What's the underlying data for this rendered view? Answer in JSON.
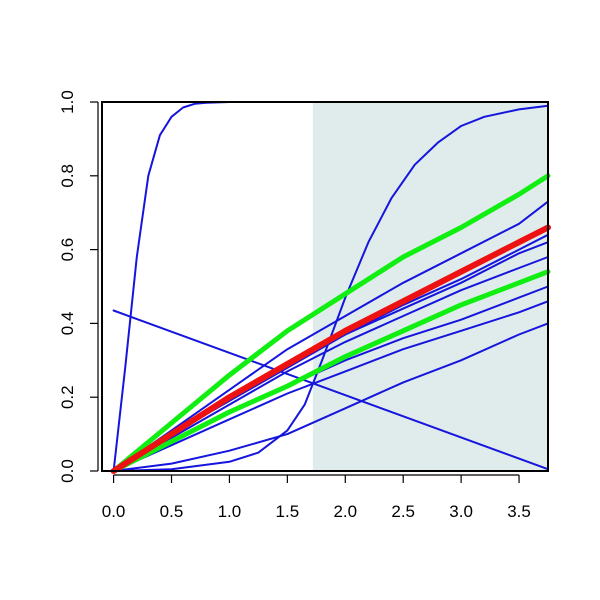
{
  "chart_data": {
    "type": "line",
    "title": "",
    "xlabel": "",
    "ylabel": "",
    "xlim": [
      -0.1,
      3.75
    ],
    "ylim": [
      0,
      1
    ],
    "grid": false,
    "x_ticks": [
      0,
      0.5,
      1,
      1.5,
      2,
      2.5,
      3,
      3.5
    ],
    "x_tick_labels": [
      "0.0",
      "0.5",
      "1.0",
      "1.5",
      "2.0",
      "2.5",
      "3.0",
      "3.5"
    ],
    "y_ticks": [
      0,
      0.2,
      0.4,
      0.6,
      0.8,
      1
    ],
    "y_tick_labels": [
      "0.0",
      "0.2",
      "0.4",
      "0.6",
      "0.8",
      "1.0"
    ],
    "shaded_region": {
      "x": [
        1.72,
        3.75
      ],
      "color": "#e0ecec"
    },
    "series": [
      {
        "color": "#1515dd",
        "width": 2,
        "x": [
          0,
          0.1,
          0.2,
          0.3,
          0.4,
          0.5,
          0.6,
          0.7,
          0.8,
          1.0,
          1.5,
          2.0,
          2.5,
          3.0,
          3.5,
          3.75
        ],
        "y": [
          0,
          0.28,
          0.58,
          0.8,
          0.91,
          0.96,
          0.985,
          0.995,
          0.998,
          1,
          1,
          1,
          1,
          1,
          1,
          1
        ]
      },
      {
        "color": "#1515dd",
        "width": 2,
        "x": [
          0,
          0.5,
          1.0,
          1.25,
          1.5,
          1.65,
          1.8,
          2.0,
          2.2,
          2.4,
          2.6,
          2.8,
          3.0,
          3.2,
          3.5,
          3.75
        ],
        "y": [
          0,
          0.005,
          0.025,
          0.05,
          0.11,
          0.18,
          0.3,
          0.47,
          0.62,
          0.74,
          0.83,
          0.89,
          0.935,
          0.96,
          0.98,
          0.99
        ]
      },
      {
        "color": "#1515dd",
        "width": 2,
        "x": [
          0,
          3.75
        ],
        "y": [
          0.435,
          0.005
        ]
      },
      {
        "color": "#1515dd",
        "width": 2,
        "x": [
          0,
          0.5,
          1.0,
          1.5,
          2.0,
          2.5,
          3.0,
          3.5,
          3.75
        ],
        "y": [
          0,
          0.11,
          0.22,
          0.33,
          0.42,
          0.51,
          0.59,
          0.67,
          0.73
        ]
      },
      {
        "color": "#1515dd",
        "width": 2,
        "x": [
          0,
          0.5,
          1.0,
          1.5,
          2.0,
          2.5,
          3.0,
          3.5,
          3.75
        ],
        "y": [
          0,
          0.1,
          0.2,
          0.29,
          0.37,
          0.45,
          0.52,
          0.6,
          0.64
        ]
      },
      {
        "color": "#1515dd",
        "width": 2,
        "x": [
          0,
          0.5,
          1.0,
          1.5,
          2.0,
          2.5,
          3.0,
          3.5,
          3.75
        ],
        "y": [
          0,
          0.1,
          0.19,
          0.28,
          0.37,
          0.44,
          0.51,
          0.59,
          0.62
        ]
      },
      {
        "color": "#1515dd",
        "width": 2,
        "x": [
          0,
          0.5,
          1.0,
          1.5,
          2.0,
          2.5,
          3.0,
          3.5,
          3.75
        ],
        "y": [
          0,
          0.09,
          0.18,
          0.27,
          0.35,
          0.42,
          0.49,
          0.55,
          0.58
        ]
      },
      {
        "color": "#1515dd",
        "width": 2,
        "x": [
          0,
          0.5,
          1.0,
          1.5,
          2.0,
          2.5,
          3.0,
          3.5,
          3.75
        ],
        "y": [
          0,
          0.08,
          0.16,
          0.23,
          0.3,
          0.36,
          0.41,
          0.47,
          0.5
        ]
      },
      {
        "color": "#1515dd",
        "width": 2,
        "x": [
          0,
          0.5,
          1.0,
          1.5,
          2.0,
          2.5,
          3.0,
          3.5,
          3.75
        ],
        "y": [
          0,
          0.07,
          0.14,
          0.21,
          0.27,
          0.33,
          0.38,
          0.43,
          0.46
        ]
      },
      {
        "color": "#1515dd",
        "width": 2,
        "x": [
          0,
          0.5,
          1.0,
          1.5,
          2.0,
          2.5,
          3.0,
          3.5,
          3.75
        ],
        "y": [
          0,
          0.02,
          0.055,
          0.1,
          0.17,
          0.24,
          0.3,
          0.37,
          0.4
        ]
      },
      {
        "color": "#11ee11",
        "width": 5,
        "x": [
          0,
          0.5,
          1.0,
          1.5,
          2.0,
          2.5,
          3.0,
          3.5,
          3.75
        ],
        "y": [
          0,
          0.13,
          0.26,
          0.38,
          0.48,
          0.58,
          0.66,
          0.75,
          0.8
        ]
      },
      {
        "color": "#11ee11",
        "width": 5,
        "x": [
          0,
          0.5,
          1.0,
          1.5,
          2.0,
          2.5,
          3.0,
          3.5,
          3.75
        ],
        "y": [
          0,
          0.08,
          0.16,
          0.23,
          0.31,
          0.38,
          0.45,
          0.51,
          0.54
        ]
      },
      {
        "color": "#ee1111",
        "width": 6,
        "x": [
          0,
          0.5,
          1.0,
          1.5,
          2.0,
          2.5,
          3.0,
          3.5,
          3.75
        ],
        "y": [
          0,
          0.1,
          0.2,
          0.29,
          0.38,
          0.46,
          0.54,
          0.62,
          0.66
        ]
      }
    ]
  }
}
